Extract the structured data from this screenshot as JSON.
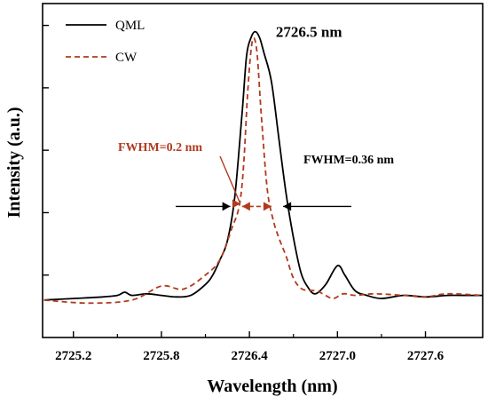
{
  "chart_data": {
    "type": "line",
    "xlabel": "Wavelength (nm)",
    "ylabel": "Intensity (a.u.)",
    "xlim": [
      2724.99,
      2727.99
    ],
    "ylim": [
      0,
      1.07
    ],
    "x_ticks": [
      2725.2,
      2725.8,
      2726.4,
      2727.0,
      2727.6
    ],
    "y_tick_labels_shown": false,
    "grid": false,
    "legend_position": "top-left",
    "series": [
      {
        "name": "QML",
        "color": "#000000",
        "style": "solid",
        "points": [
          [
            2725.0,
            0.12
          ],
          [
            2725.2,
            0.125
          ],
          [
            2725.4,
            0.13
          ],
          [
            2725.5,
            0.135
          ],
          [
            2725.55,
            0.145
          ],
          [
            2725.6,
            0.135
          ],
          [
            2725.7,
            0.14
          ],
          [
            2725.8,
            0.135
          ],
          [
            2725.9,
            0.13
          ],
          [
            2726.0,
            0.135
          ],
          [
            2726.1,
            0.17
          ],
          [
            2726.15,
            0.2
          ],
          [
            2726.2,
            0.25
          ],
          [
            2726.25,
            0.31
          ],
          [
            2726.3,
            0.45
          ],
          [
            2726.35,
            0.72
          ],
          [
            2726.38,
            0.9
          ],
          [
            2726.41,
            0.96
          ],
          [
            2726.44,
            0.98
          ],
          [
            2726.47,
            0.96
          ],
          [
            2726.5,
            0.91
          ],
          [
            2726.55,
            0.82
          ],
          [
            2726.6,
            0.64
          ],
          [
            2726.65,
            0.46
          ],
          [
            2726.7,
            0.32
          ],
          [
            2726.75,
            0.21
          ],
          [
            2726.8,
            0.16
          ],
          [
            2726.85,
            0.14
          ],
          [
            2726.92,
            0.17
          ],
          [
            2727.0,
            0.23
          ],
          [
            2727.05,
            0.2
          ],
          [
            2727.12,
            0.15
          ],
          [
            2727.2,
            0.135
          ],
          [
            2727.3,
            0.125
          ],
          [
            2727.45,
            0.135
          ],
          [
            2727.6,
            0.13
          ],
          [
            2727.75,
            0.135
          ],
          [
            2727.9,
            0.135
          ],
          [
            2727.99,
            0.135
          ]
        ]
      },
      {
        "name": "CW",
        "color": "#b03a1e",
        "style": "dashed",
        "points": [
          [
            2725.0,
            0.12
          ],
          [
            2725.3,
            0.11
          ],
          [
            2725.6,
            0.12
          ],
          [
            2725.8,
            0.165
          ],
          [
            2725.95,
            0.155
          ],
          [
            2726.1,
            0.2
          ],
          [
            2726.2,
            0.25
          ],
          [
            2726.28,
            0.35
          ],
          [
            2726.33,
            0.42
          ],
          [
            2726.36,
            0.55
          ],
          [
            2726.39,
            0.8
          ],
          [
            2726.42,
            0.95
          ],
          [
            2726.45,
            0.92
          ],
          [
            2726.48,
            0.72
          ],
          [
            2726.52,
            0.48
          ],
          [
            2726.56,
            0.38
          ],
          [
            2726.6,
            0.32
          ],
          [
            2726.65,
            0.26
          ],
          [
            2726.7,
            0.19
          ],
          [
            2726.76,
            0.155
          ],
          [
            2726.85,
            0.15
          ],
          [
            2726.9,
            0.14
          ],
          [
            2726.97,
            0.125
          ],
          [
            2727.04,
            0.14
          ],
          [
            2727.12,
            0.135
          ],
          [
            2727.25,
            0.14
          ],
          [
            2727.45,
            0.135
          ],
          [
            2727.6,
            0.13
          ],
          [
            2727.75,
            0.14
          ],
          [
            2727.99,
            0.135
          ]
        ]
      }
    ],
    "annotations": [
      {
        "text": "2726.5 nm",
        "x": 2726.58,
        "y": 0.98,
        "color": "#000000"
      },
      {
        "text": "FWHM=0.2 nm",
        "color": "#b03a1e",
        "interval": [
          2726.35,
          2726.55
        ],
        "y": 0.42
      },
      {
        "text": "FWHM=0.36 nm",
        "color": "#000000",
        "interval": [
          2726.27,
          2726.63
        ],
        "y": 0.42
      }
    ]
  }
}
